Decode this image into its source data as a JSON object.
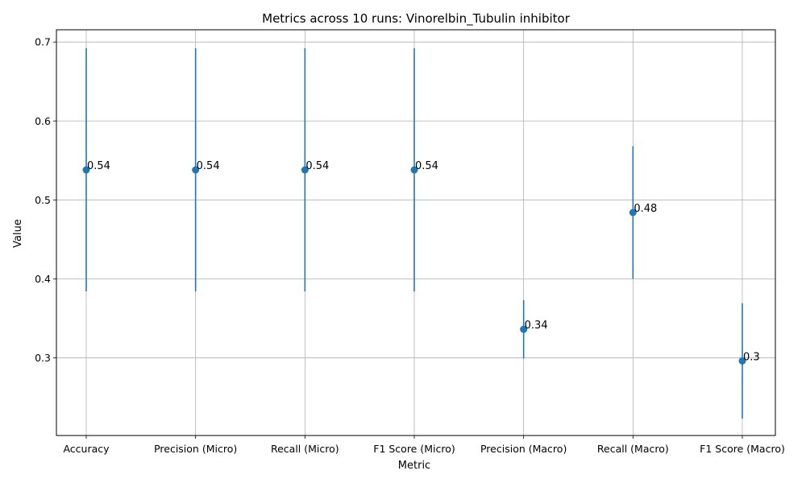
{
  "chart_data": {
    "type": "errorbar",
    "title": "Metrics across 10 runs: Vinorelbin_Tubulin inhibitor",
    "xlabel": "Metric",
    "ylabel": "Value",
    "categories": [
      "Accuracy",
      "Precision (Micro)",
      "Recall (Micro)",
      "F1 Score (Micro)",
      "Precision (Macro)",
      "Recall (Macro)",
      "F1 Score (Macro)"
    ],
    "values": [
      0.538,
      0.538,
      0.538,
      0.538,
      0.336,
      0.484,
      0.296
    ],
    "errors": [
      0.154,
      0.154,
      0.154,
      0.154,
      0.037,
      0.084,
      0.073
    ],
    "labels": [
      "0.54",
      "0.54",
      "0.54",
      "0.54",
      "0.34",
      "0.48",
      "0.3"
    ],
    "yticks": [
      0.3,
      0.4,
      0.5,
      0.6,
      0.7
    ],
    "ytick_labels": [
      "0.3",
      "0.4",
      "0.5",
      "0.6",
      "0.7"
    ],
    "ylim": [
      0.2015,
      0.7155
    ],
    "grid": true,
    "color": "#1f77b4"
  }
}
